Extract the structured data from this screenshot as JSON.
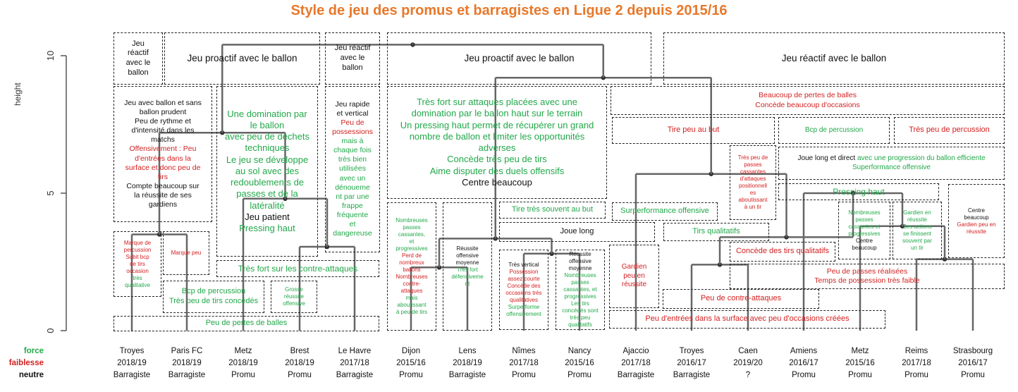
{
  "title": "Style de jeu des promus et barragistes en Ligue 2 depuis 2015/16",
  "chart_data": {
    "type": "dendrogram",
    "title": "Style de jeu des promus et barragistes en Ligue 2 depuis 2015/16",
    "ylabel": "height",
    "ylim": [
      0,
      10.5
    ],
    "yticks": [
      "0",
      "5",
      "10"
    ],
    "leaves": [
      {
        "team": "Troyes",
        "season": "2018/19",
        "status": "Barragiste"
      },
      {
        "team": "Paris FC",
        "season": "2018/19",
        "status": "Barragiste"
      },
      {
        "team": "Metz",
        "season": "2018/19",
        "status": "Promu"
      },
      {
        "team": "Brest",
        "season": "2018/19",
        "status": "Promu"
      },
      {
        "team": "Le Havre",
        "season": "2017/18",
        "status": "Barragiste"
      },
      {
        "team": "Dijon",
        "season": "2015/16",
        "status": "Promu"
      },
      {
        "team": "Lens",
        "season": "2018/19",
        "status": "Barragiste"
      },
      {
        "team": "Nîmes",
        "season": "2017/18",
        "status": "Promu"
      },
      {
        "team": "Nancy",
        "season": "2015/16",
        "status": "Promu"
      },
      {
        "team": "Ajaccio",
        "season": "2017/18",
        "status": "Barragiste"
      },
      {
        "team": "Troyes",
        "season": "2016/17",
        "status": "Barragiste"
      },
      {
        "team": "Caen",
        "season": "2019/20",
        "status": "?"
      },
      {
        "team": "Amiens",
        "season": "2016/17",
        "status": "Promu"
      },
      {
        "team": "Metz",
        "season": "2015/16",
        "status": "Promu"
      },
      {
        "team": "Reims",
        "season": "2017/18",
        "status": "Promu"
      },
      {
        "team": "Strasbourg",
        "season": "2016/17",
        "status": "Promu"
      }
    ],
    "merges": [
      {
        "a": 0,
        "b": 1,
        "height": 3.5
      },
      {
        "a": 3,
        "b": 4,
        "height": 3.05
      },
      {
        "a": 2,
        "b": -2,
        "height": 4.8
      },
      {
        "a": -1,
        "b": -3,
        "height": 7.2
      },
      {
        "a": 5,
        "b": 6,
        "height": 2.3
      },
      {
        "a": 7,
        "b": 8,
        "height": 2.8
      },
      {
        "a": -5,
        "b": -6,
        "height": 3.35
      },
      {
        "a": 10,
        "b": 11,
        "height": 2.4
      },
      {
        "a": 14,
        "b": 15,
        "height": 2.6
      },
      {
        "a": 13,
        "b": -9,
        "height": 3.8
      },
      {
        "a": 12,
        "b": -10,
        "height": 5.0
      },
      {
        "a": -8,
        "b": -11,
        "height": 3.4
      },
      {
        "a": 9,
        "b": -12,
        "height": 5.7
      },
      {
        "a": -7,
        "b": -13,
        "height": 9.2
      },
      {
        "a": -4,
        "b": -14,
        "height": 10.4
      }
    ],
    "legend": [
      {
        "label": "force",
        "color": "#22a84a"
      },
      {
        "label": "faiblesse",
        "color": "#d42020"
      },
      {
        "label": "neutre",
        "color": "#111111"
      }
    ]
  },
  "annotations": [
    {
      "lines": [
        [
          "Jeu",
          "k"
        ],
        [
          "réactif",
          "k"
        ],
        [
          "avec le",
          "k"
        ],
        [
          "ballon",
          "k"
        ]
      ]
    },
    {
      "lines": [
        [
          "Jeu proactif avec le ballon",
          "k"
        ]
      ]
    },
    {
      "lines": [
        [
          "Jeu réactif",
          "k"
        ],
        [
          "avec le",
          "k"
        ],
        [
          "ballon",
          "k"
        ]
      ]
    },
    {
      "lines": [
        [
          "Jeu proactif avec le ballon",
          "k"
        ]
      ]
    },
    {
      "lines": [
        [
          "Jeu réactif avec le ballon",
          "k"
        ]
      ]
    },
    {
      "lines": [
        [
          "Jeu avec ballon et sans",
          "k"
        ],
        [
          "ballon prudent",
          "k"
        ],
        [
          "Peu de rythme et",
          "k"
        ],
        [
          "d'intensité dans les",
          "k"
        ],
        [
          "matchs",
          "k"
        ],
        [
          "Offensivement : Peu",
          "r"
        ],
        [
          "d'entrées dans la",
          "r"
        ],
        [
          "surface et donc peu de",
          "r"
        ],
        [
          "tirs",
          "r"
        ],
        [
          "Compte beaucoup sur",
          "k"
        ],
        [
          "la réussite de ses",
          "k"
        ],
        [
          "gardiens",
          "k"
        ]
      ]
    },
    {
      "lines": [
        [
          "Une domination par",
          "g"
        ],
        [
          "le ballon",
          "g"
        ],
        [
          "avec peu de déchets",
          "g"
        ],
        [
          "techniques",
          "g"
        ],
        [
          "Le jeu se développe",
          "g"
        ],
        [
          "au sol avec des",
          "g"
        ],
        [
          "redoublements de",
          "g"
        ],
        [
          "passes et de la",
          "g"
        ],
        [
          "latéralité",
          "g"
        ],
        [
          "Jeu patient",
          "k"
        ],
        [
          "Pressing haut",
          "g"
        ]
      ]
    },
    {
      "lines": [
        [
          "Jeu rapide",
          "k"
        ],
        [
          "et vertical",
          "k"
        ],
        [
          "Peu de",
          "r"
        ],
        [
          "possessions",
          "r"
        ],
        [
          "mais à",
          "g"
        ],
        [
          "chaque fois",
          "g"
        ],
        [
          "très bien",
          "g"
        ],
        [
          "utilisées",
          "g"
        ],
        [
          "avec un",
          "g"
        ],
        [
          "dénoueme",
          "g"
        ],
        [
          "nt par une",
          "g"
        ],
        [
          "frappe",
          "g"
        ],
        [
          "fréquente",
          "g"
        ],
        [
          "et",
          "g"
        ],
        [
          "dangereuse",
          "g"
        ]
      ]
    },
    {
      "lines": [
        [
          "Très fort sur attaques placées avec une",
          "g"
        ],
        [
          "domination par le ballon haut sur le terrain",
          "g"
        ],
        [
          "Un pressing haut permet de récupérer un grand",
          "g"
        ],
        [
          "nombre de ballon et limiter les opportunités",
          "g"
        ],
        [
          "adverses",
          "g"
        ],
        [
          "Concède très peu de tirs",
          "g"
        ],
        [
          "Aime disputer des duels offensifs",
          "g"
        ],
        [
          "Centre beaucoup",
          "k"
        ]
      ]
    },
    {
      "lines": [
        [
          "Beaucoup de pertes de balles",
          "r"
        ],
        [
          "Concède beaucoup d'occasions",
          "r"
        ]
      ]
    },
    {
      "lines": [
        [
          "Tire peu au but",
          "r"
        ]
      ]
    },
    {
      "lines": [
        [
          "Bcp de percussion",
          "g"
        ]
      ]
    },
    {
      "lines": [
        [
          "Très peu de percussion",
          "r"
        ]
      ]
    },
    {
      "lines": [
        [
          "Très peu de",
          "r"
        ],
        [
          "passes",
          "r"
        ],
        [
          "cassantes",
          "r"
        ],
        [
          "d'attaques",
          "r"
        ],
        [
          "positionnell",
          "r"
        ],
        [
          "es",
          "r"
        ],
        [
          "aboutissant",
          "r"
        ],
        [
          "à un tir",
          "r"
        ]
      ]
    },
    {
      "lines": [
        [
          "Joue long et direct ",
          "k"
        ],
        [
          "avec une progression du ballon efficiente",
          "g"
        ],
        [
          "Superformance offensive",
          "g"
        ]
      ]
    },
    {
      "lines": [
        [
          "Pressing haut",
          "g"
        ]
      ]
    },
    {
      "lines": [
        [
          "Marque de",
          "r"
        ],
        [
          "percussion",
          "r"
        ],
        [
          "Subit bcp",
          "r"
        ],
        [
          "de tirs",
          "r"
        ],
        [
          "occasion",
          "r"
        ],
        [
          "très",
          "g"
        ],
        [
          "qualitative",
          "g"
        ]
      ]
    },
    {
      "lines": [
        [
          "Marque peu",
          "r"
        ]
      ]
    },
    {
      "lines": [
        [
          "Très fort sur les contre-attaques",
          "g"
        ]
      ]
    },
    {
      "lines": [
        [
          "Bcp de percussion",
          "g"
        ],
        [
          "Très peu de tirs concédés",
          "g"
        ]
      ]
    },
    {
      "lines": [
        [
          "Grosse",
          "g"
        ],
        [
          "réussite",
          "g"
        ],
        [
          "offensive",
          "g"
        ]
      ]
    },
    {
      "lines": [
        [
          "Peu de pertes de balles",
          "g"
        ]
      ]
    },
    {
      "lines": [
        [
          "Nombreuses",
          "g"
        ],
        [
          "passes",
          "g"
        ],
        [
          "cassantes,",
          "g"
        ],
        [
          "et",
          "g"
        ],
        [
          "progressives",
          "g"
        ],
        [
          "Perd de",
          "r"
        ],
        [
          "nombreux",
          "r"
        ],
        [
          "ballons",
          "r"
        ],
        [
          "Nombreuses",
          "r"
        ],
        [
          "contre-",
          "r"
        ],
        [
          "attaques",
          "r"
        ],
        [
          "mais",
          "g"
        ],
        [
          "aboutissant",
          "g"
        ],
        [
          "à peu de tirs",
          "g"
        ]
      ]
    },
    {
      "lines": [
        [
          "Réussite",
          "k"
        ],
        [
          "offensive",
          "k"
        ],
        [
          "moyenne",
          "k"
        ],
        [
          "Très fort",
          "g"
        ],
        [
          "défensiveme",
          "g"
        ],
        [
          "nt",
          "g"
        ]
      ]
    },
    {
      "lines": [
        [
          "Tire très souvent au but",
          "g"
        ]
      ]
    },
    {
      "lines": [
        [
          "Joue long",
          "k"
        ]
      ]
    },
    {
      "lines": [
        [
          "Très vertical",
          "k"
        ],
        [
          "Possession",
          "r"
        ],
        [
          "assez courte",
          "r"
        ],
        [
          "Concède des",
          "r"
        ],
        [
          "occasions très",
          "r"
        ],
        [
          "qualitatives",
          "r"
        ],
        [
          "Surperforme",
          "g"
        ],
        [
          "offensivement",
          "g"
        ]
      ]
    },
    {
      "lines": [
        [
          "Réussite",
          "k"
        ],
        [
          "offensive",
          "k"
        ],
        [
          "moyenne",
          "k"
        ],
        [
          "Nombreuses",
          "g"
        ],
        [
          "passes",
          "g"
        ],
        [
          "cassantes, et",
          "g"
        ],
        [
          "progressives",
          "g"
        ],
        [
          "Les tirs",
          "g"
        ],
        [
          "concédés sont",
          "g"
        ],
        [
          "très peu",
          "g"
        ],
        [
          "qualitatifs",
          "g"
        ]
      ]
    },
    {
      "lines": [
        [
          "Surperformance offensive",
          "g"
        ]
      ]
    },
    {
      "lines": [
        [
          "Tirs qualitatifs",
          "g"
        ]
      ]
    },
    {
      "lines": [
        [
          "Concède des tirs qualitatifs",
          "r"
        ]
      ]
    },
    {
      "lines": [
        [
          "Nombreuses",
          "g"
        ],
        [
          "passes",
          "g"
        ],
        [
          "cassantes et",
          "g"
        ],
        [
          "progressives",
          "g"
        ],
        [
          "Centre",
          "k"
        ],
        [
          "beaucoup",
          "k"
        ]
      ]
    },
    {
      "lines": [
        [
          "Gardien en",
          "g"
        ],
        [
          "réussite",
          "g"
        ],
        [
          "Ses actions",
          "g"
        ],
        [
          "se finissent",
          "g"
        ],
        [
          "souvent par",
          "g"
        ],
        [
          "un tir",
          "g"
        ]
      ]
    },
    {
      "lines": [
        [
          "Centre",
          "k"
        ],
        [
          "beaucoup",
          "k"
        ],
        [
          "Gardien peu en",
          "r"
        ],
        [
          "réussite",
          "r"
        ]
      ]
    },
    {
      "lines": [
        [
          "Gardien",
          "r"
        ],
        [
          "peu en",
          "r"
        ],
        [
          "réussite",
          "r"
        ]
      ]
    },
    {
      "lines": [
        [
          "Peu de passes réalisées",
          "r"
        ],
        [
          "Temps de possession très faible",
          "r"
        ]
      ]
    },
    {
      "lines": [
        [
          "Peu de contre-attaques",
          "r"
        ]
      ]
    },
    {
      "lines": [
        [
          "Peu d'entrées dans la surface avec peu d'occasions créées",
          "r"
        ]
      ]
    }
  ],
  "colors": {
    "title": "#e8782a",
    "force": "#22a84a",
    "faiblesse": "#d42020",
    "neutre": "#111111",
    "tree": "#666666"
  }
}
